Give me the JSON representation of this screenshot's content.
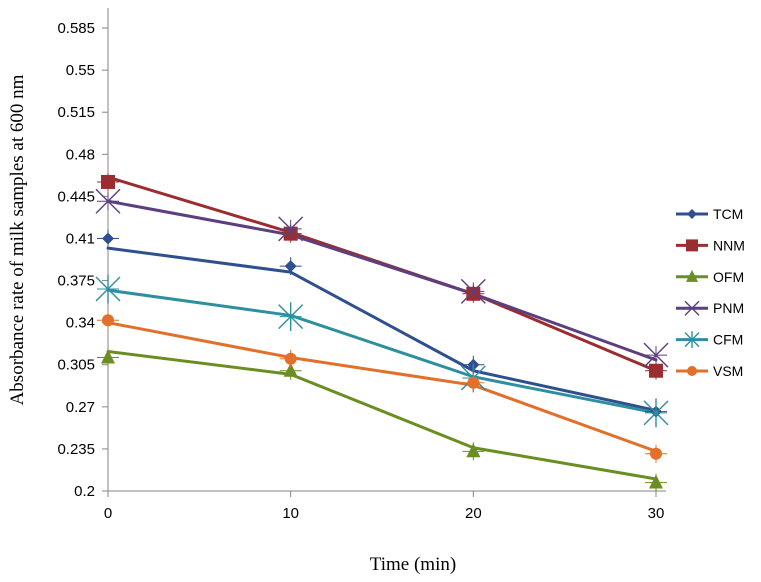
{
  "chart_data": {
    "type": "line",
    "title": "",
    "xlabel": "Time (min)",
    "ylabel": "Absorbance rate of milk samples at 600 nm",
    "x": [
      0,
      10,
      20,
      30
    ],
    "xlim": [
      0,
      30
    ],
    "ylim": [
      0.2,
      0.6
    ],
    "x_ticks": [
      "0",
      "10",
      "20",
      "30"
    ],
    "y_ticks": [
      "0.2",
      "0.235",
      "0.27",
      "0.305",
      "0.34",
      "0.375",
      "0.41",
      "0.445",
      "0.48",
      "0.515",
      "0.55",
      "0.585"
    ],
    "y_tick_values": [
      0.2,
      0.235,
      0.27,
      0.305,
      0.34,
      0.375,
      0.41,
      0.445,
      0.48,
      0.515,
      0.55,
      0.585
    ],
    "grid": false,
    "legend_position": "right",
    "series": [
      {
        "name": "TCM",
        "color": "#2F4F8F",
        "marker": "diamond",
        "values": [
          0.402,
          0.382,
          0.3,
          0.267
        ],
        "marker_values": [
          0.41,
          0.387,
          0.305,
          0.266
        ]
      },
      {
        "name": "NNM",
        "color": "#9B2D30",
        "marker": "square",
        "values": [
          0.461,
          0.415,
          0.364,
          0.3
        ],
        "marker_values": [
          0.457,
          0.414,
          0.364,
          0.3
        ]
      },
      {
        "name": "OFM",
        "color": "#6B8E23",
        "marker": "triangle",
        "values": [
          0.316,
          0.297,
          0.236,
          0.21
        ],
        "marker_values": [
          0.311,
          0.3,
          0.233,
          0.207
        ]
      },
      {
        "name": "PNM",
        "color": "#5B3F7F",
        "marker": "x",
        "values": [
          0.441,
          0.413,
          0.364,
          0.309
        ],
        "marker_values": [
          0.441,
          0.418,
          0.366,
          0.313
        ]
      },
      {
        "name": "CFM",
        "color": "#2E8FA0",
        "marker": "asterisk",
        "values": [
          0.367,
          0.346,
          0.295,
          0.265
        ],
        "marker_values": [
          0.368,
          0.345,
          0.294,
          0.265
        ]
      },
      {
        "name": "VSM",
        "color": "#E0702A",
        "marker": "circle",
        "values": [
          0.34,
          0.311,
          0.288,
          0.233
        ],
        "marker_values": [
          0.342,
          0.31,
          0.29,
          0.231
        ]
      }
    ]
  }
}
